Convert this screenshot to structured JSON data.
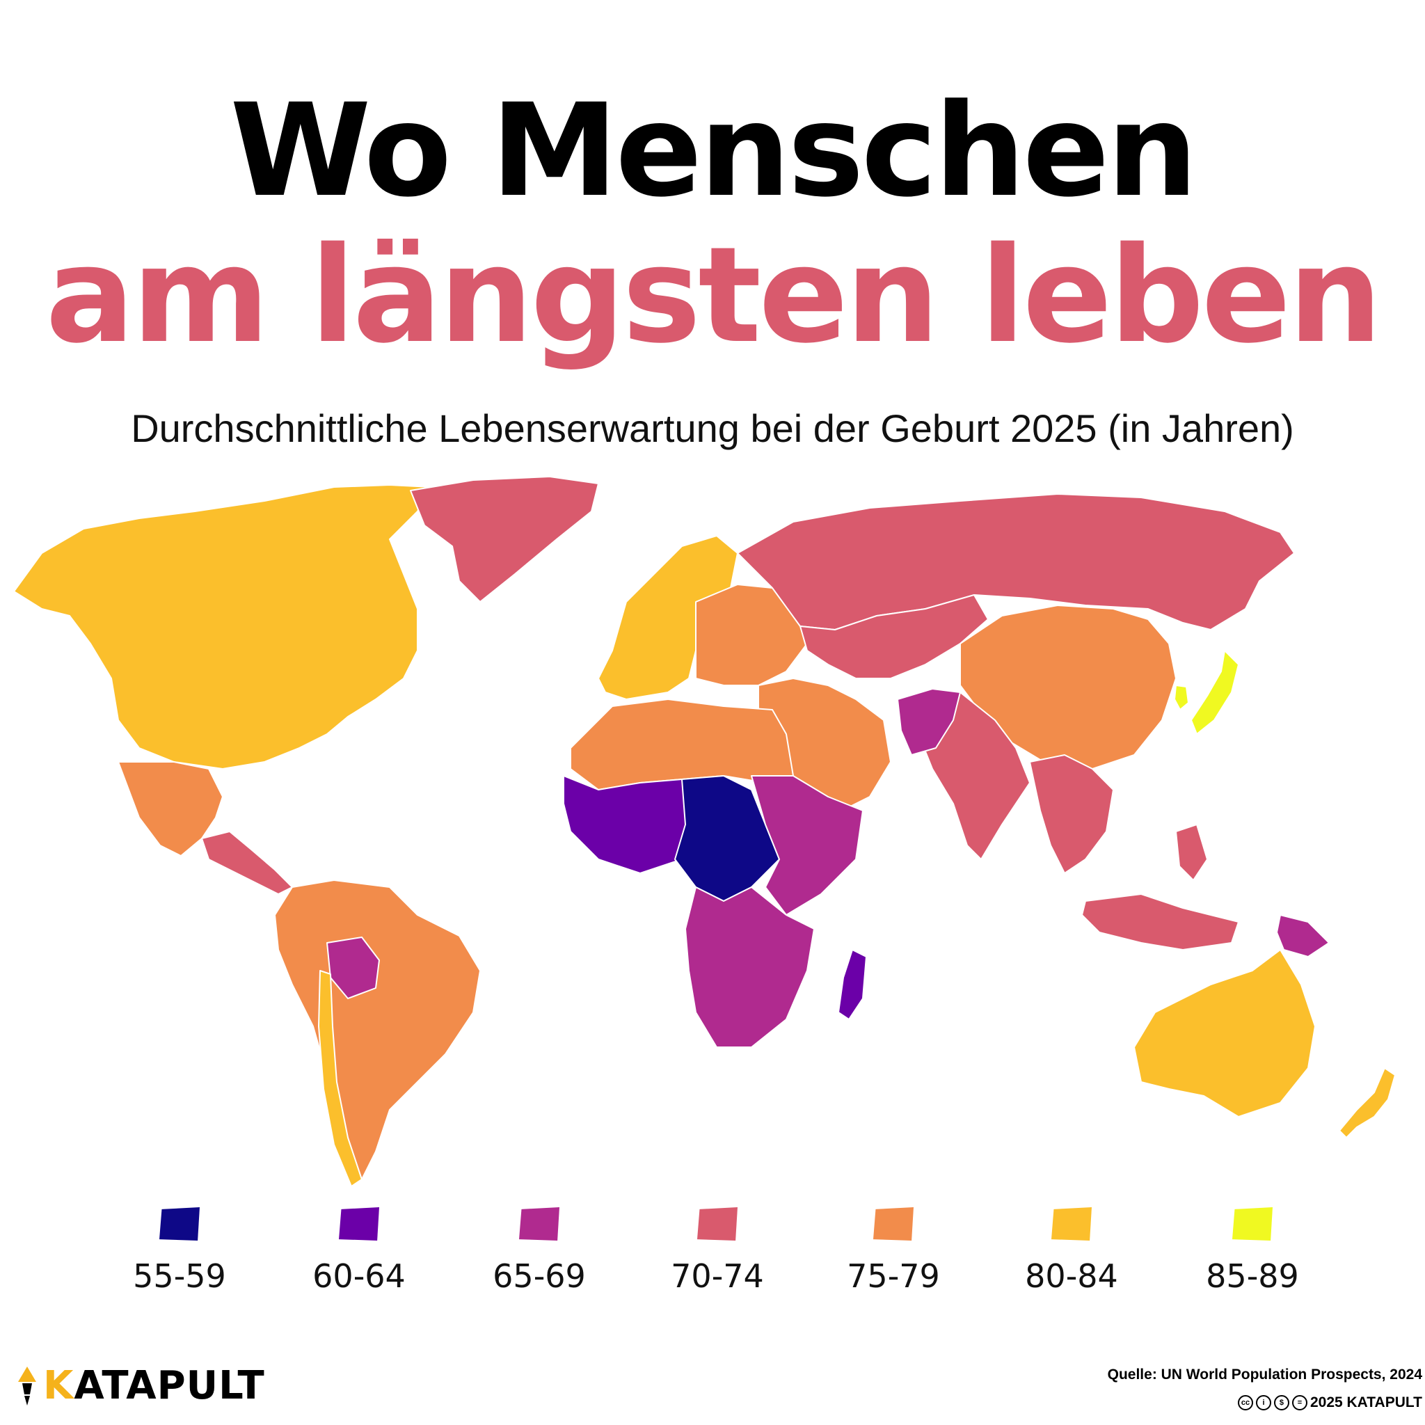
{
  "title": {
    "line1": "Wo Menschen",
    "line2": "am längsten leben",
    "line2_color": "#d95a6d"
  },
  "subtitle": "Durchschnittliche Lebenserwartung bei der Geburt 2025 (in Jahren)",
  "legend": {
    "items": [
      {
        "label": "55-59",
        "color": "#0e0887"
      },
      {
        "label": "60-64",
        "color": "#6b00a8"
      },
      {
        "label": "65-69",
        "color": "#b02a8f"
      },
      {
        "label": "70-74",
        "color": "#d95a6d"
      },
      {
        "label": "75-79",
        "color": "#f28c4b"
      },
      {
        "label": "80-84",
        "color": "#fbbf2c"
      },
      {
        "label": "85-89",
        "color": "#f0f921"
      }
    ]
  },
  "map": {
    "background": "#ffffff",
    "border_color": "#ffffff",
    "regions": [
      {
        "name": "Nordamerika",
        "color": "#fbbf2c"
      },
      {
        "name": "Grönland",
        "color": "#d95a6d"
      },
      {
        "name": "Mexiko",
        "color": "#f28c4b"
      },
      {
        "name": "Zentralamerika",
        "color": "#d95a6d"
      },
      {
        "name": "Südamerika",
        "color": "#f28c4b"
      },
      {
        "name": "Bolivien",
        "color": "#b02a8f"
      },
      {
        "name": "Chile",
        "color": "#fbbf2c"
      },
      {
        "name": "Westeuropa",
        "color": "#fbbf2c"
      },
      {
        "name": "Osteuropa",
        "color": "#f28c4b"
      },
      {
        "name": "Russland",
        "color": "#d95a6d"
      },
      {
        "name": "Zentralasien",
        "color": "#d95a6d"
      },
      {
        "name": "China",
        "color": "#f28c4b"
      },
      {
        "name": "Japan",
        "color": "#f0f921"
      },
      {
        "name": "Südkorea",
        "color": "#f0f921"
      },
      {
        "name": "Naher Osten",
        "color": "#f28c4b"
      },
      {
        "name": "Südasien",
        "color": "#d95a6d"
      },
      {
        "name": "Pakistan",
        "color": "#b02a8f"
      },
      {
        "name": "Südostasien",
        "color": "#d95a6d"
      },
      {
        "name": "Nordafrika",
        "color": "#f28c4b"
      },
      {
        "name": "Westafrika",
        "color": "#6b00a8"
      },
      {
        "name": "Zentralafrika",
        "color": "#0e0887"
      },
      {
        "name": "Ostafrika",
        "color": "#b02a8f"
      },
      {
        "name": "Südliches Afrika",
        "color": "#b02a8f"
      },
      {
        "name": "Madagaskar",
        "color": "#6b00a8"
      },
      {
        "name": "Indonesien",
        "color": "#d95a6d"
      },
      {
        "name": "Papua-Neuguinea",
        "color": "#b02a8f"
      },
      {
        "name": "Australien",
        "color": "#fbbf2c"
      },
      {
        "name": "Neuseeland",
        "color": "#fbbf2c"
      }
    ]
  },
  "brand": {
    "first_letter": "K",
    "rest": "ATAPULT",
    "accent": "#f5b21b"
  },
  "source": "Quelle: UN World Population Prospects, 2024",
  "copyright": {
    "text": "2025 KATAPULT",
    "icons": [
      "cc-icon",
      "by-icon",
      "nc-icon",
      "nd-icon"
    ]
  }
}
